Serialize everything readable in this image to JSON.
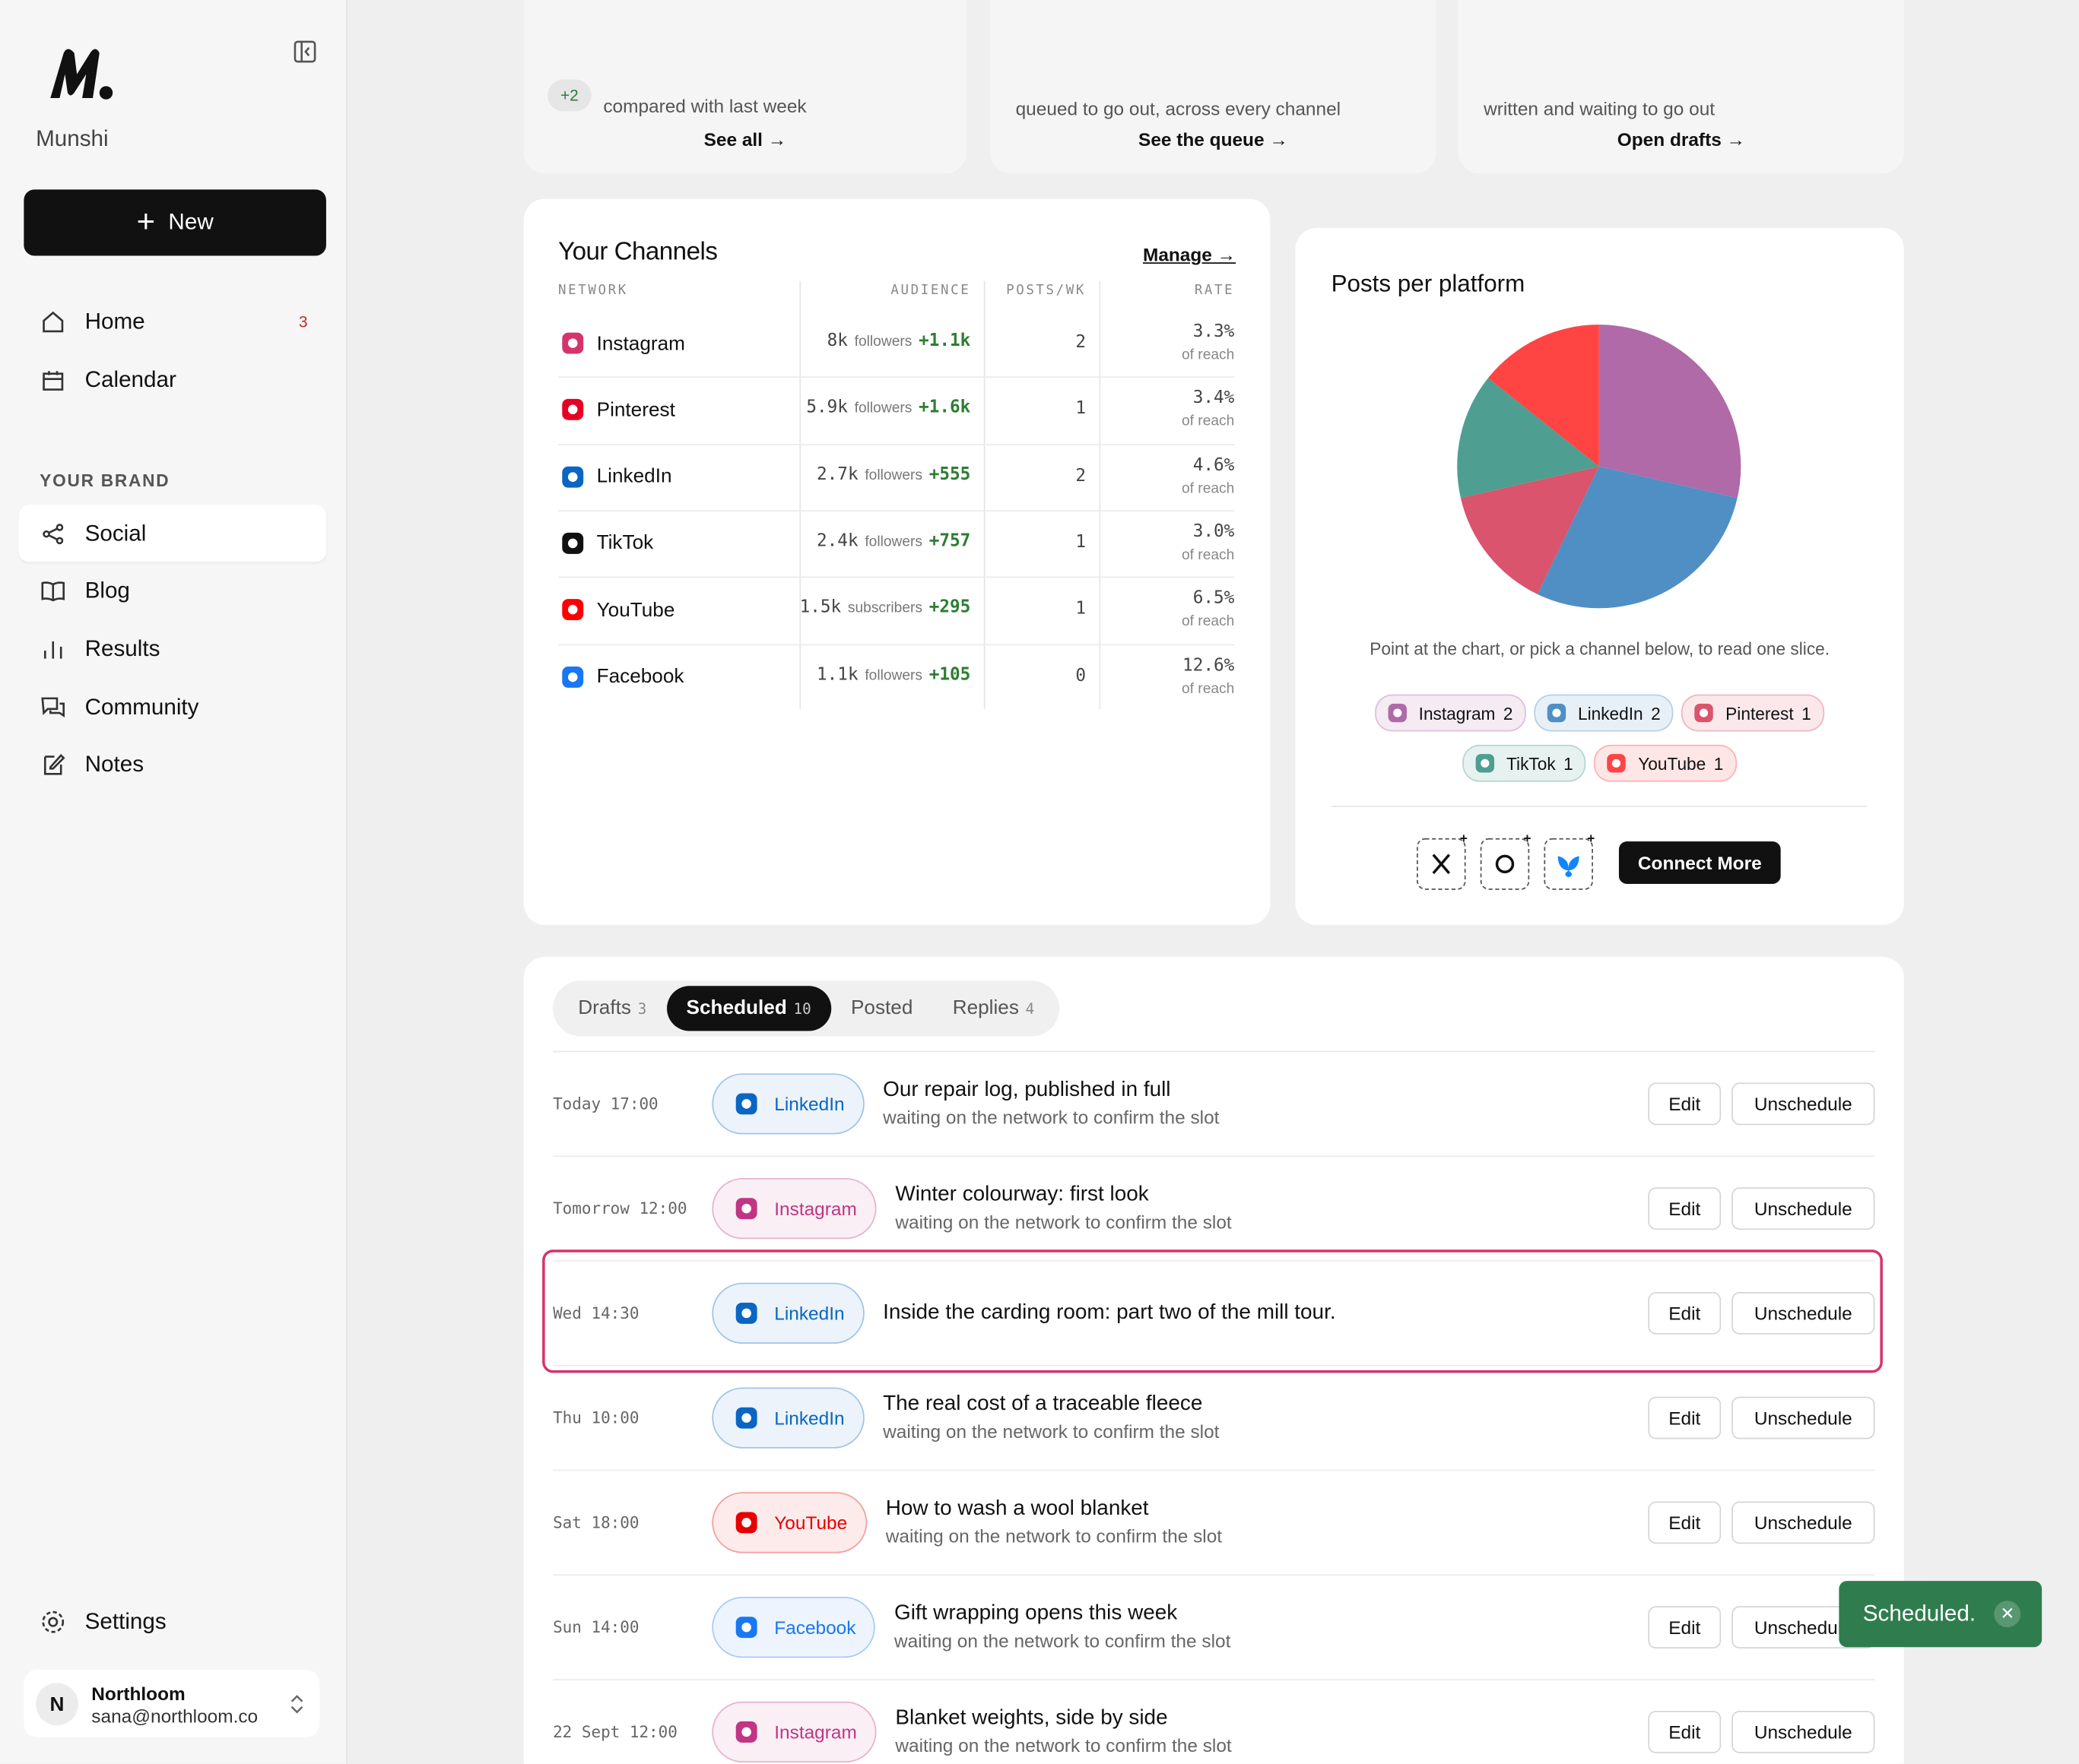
{
  "sidebar": {
    "brand": "Munshi",
    "new_button": "New",
    "nav": [
      {
        "label": "Home",
        "badge": "3"
      },
      {
        "label": "Calendar"
      }
    ],
    "section": "YOUR BRAND",
    "brand_nav": [
      "Social",
      "Blog",
      "Results",
      "Community",
      "Notes"
    ],
    "settings": "Settings",
    "account": {
      "initial": "N",
      "name": "Northloom",
      "email": "sana@northloom.co"
    }
  },
  "summary_cards": [
    {
      "delta": "+2",
      "text": "compared with last week",
      "link": "See all →"
    },
    {
      "text": "queued to go out, across every channel",
      "link": "See the queue →"
    },
    {
      "text": "written and waiting to go out",
      "link": "Open drafts →"
    }
  ],
  "channels": {
    "title": "Your Channels",
    "manage": "Manage →",
    "columns": [
      "NETWORK",
      "AUDIENCE",
      "POSTS/WK",
      "RATE"
    ],
    "rows": [
      {
        "network": "Instagram",
        "color": "#d6336c",
        "audience": "8k",
        "unit": "followers",
        "growth": "+1.1k",
        "posts": "2",
        "rate": "3.3%",
        "rate_note": "of reach"
      },
      {
        "network": "Pinterest",
        "color": "#e60023",
        "audience": "5.9k",
        "unit": "followers",
        "growth": "+1.6k",
        "posts": "1",
        "rate": "3.4%",
        "rate_note": "of reach"
      },
      {
        "network": "LinkedIn",
        "color": "#0a66c2",
        "audience": "2.7k",
        "unit": "followers",
        "growth": "+555",
        "posts": "2",
        "rate": "4.6%",
        "rate_note": "of reach"
      },
      {
        "network": "TikTok",
        "color": "#111111",
        "audience": "2.4k",
        "unit": "followers",
        "growth": "+757",
        "posts": "1",
        "rate": "3.0%",
        "rate_note": "of reach"
      },
      {
        "network": "YouTube",
        "color": "#ff0000",
        "audience": "1.5k",
        "unit": "subscribers",
        "growth": "+295",
        "posts": "1",
        "rate": "6.5%",
        "rate_note": "of reach"
      },
      {
        "network": "Facebook",
        "color": "#1877f2",
        "audience": "1.1k",
        "unit": "followers",
        "growth": "+105",
        "posts": "0",
        "rate": "12.6%",
        "rate_note": "of reach"
      }
    ]
  },
  "platform_chart": {
    "type": "pie",
    "title": "Posts per platform",
    "hint": "Point at the chart, or pick a channel below, to read one slice.",
    "slices": [
      {
        "name": "Instagram",
        "value": 2,
        "color": "#b06aa8"
      },
      {
        "name": "LinkedIn",
        "value": 2,
        "color": "#4f8fc4"
      },
      {
        "name": "Pinterest",
        "value": 1,
        "color": "#d9546c"
      },
      {
        "name": "TikTok",
        "value": 1,
        "color": "#4e9e91"
      },
      {
        "name": "YouTube",
        "value": 1,
        "color": "#ff4444"
      }
    ],
    "connect": "Connect More"
  },
  "queue": {
    "tabs": [
      {
        "label": "Drafts",
        "count": "3"
      },
      {
        "label": "Scheduled",
        "count": "10"
      },
      {
        "label": "Posted"
      },
      {
        "label": "Replies",
        "count": "4"
      }
    ],
    "actions": [
      "Edit",
      "Unschedule"
    ],
    "rows": [
      {
        "time": "Today 17:00",
        "network": "LinkedIn",
        "color": "#0a66c2",
        "title": "Our repair log, published in full",
        "status": "waiting on the network to confirm the slot"
      },
      {
        "time": "Tomorrow 12:00",
        "network": "Instagram",
        "color": "#c13584",
        "title": "Winter colourway: first look",
        "status": "waiting on the network to confirm the slot"
      },
      {
        "time": "Wed 14:30",
        "network": "LinkedIn",
        "color": "#0a66c2",
        "title": "Inside the carding room: part two of the mill tour."
      },
      {
        "time": "Thu 10:00",
        "network": "LinkedIn",
        "color": "#0a66c2",
        "title": "The real cost of a traceable fleece",
        "status": "waiting on the network to confirm the slot"
      },
      {
        "time": "Sat 18:00",
        "network": "YouTube",
        "color": "#e60000",
        "title": "How to wash a wool blanket",
        "status": "waiting on the network to confirm the slot"
      },
      {
        "time": "Sun 14:00",
        "network": "Facebook",
        "color": "#1877f2",
        "title": "Gift wrapping opens this week",
        "status": "waiting on the network to confirm the slot"
      },
      {
        "time": "22 Sept 12:00",
        "network": "Instagram",
        "color": "#c13584",
        "title": "Blanket weights, side by side",
        "status": "waiting on the network to confirm the slot"
      }
    ]
  },
  "toast": "Scheduled."
}
